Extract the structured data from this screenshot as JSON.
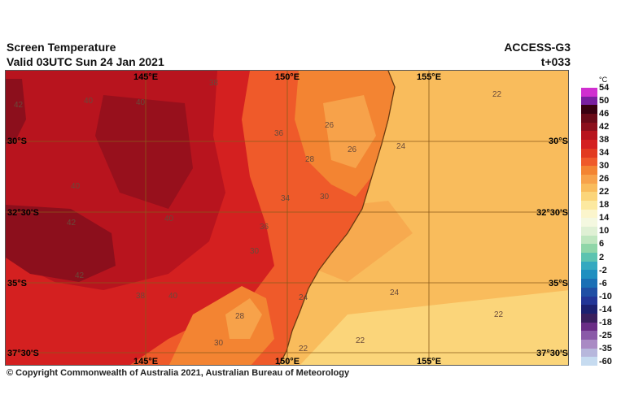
{
  "header": {
    "title": "Screen Temperature",
    "valid": "Valid 03UTC Sun 24 Jan 2021",
    "model": "ACCESS-G3",
    "lead": "t+033"
  },
  "map": {
    "lon_labels": [
      "145°E",
      "150°E",
      "155°E"
    ],
    "lat_labels": [
      "30°S",
      "32°30'S",
      "35°S",
      "37°30'S"
    ],
    "contour_labels": [
      "40",
      "40",
      "40",
      "42",
      "42",
      "40",
      "38",
      "36",
      "26",
      "26",
      "28",
      "34",
      "30",
      "30",
      "36",
      "24",
      "24",
      "22",
      "22",
      "22",
      "22",
      "24",
      "28",
      "30",
      "38",
      "40",
      "42"
    ]
  },
  "legend": {
    "unit": "°C",
    "labels": [
      "54",
      "50",
      "46",
      "42",
      "38",
      "34",
      "30",
      "26",
      "22",
      "18",
      "14",
      "10",
      "6",
      "2",
      "-2",
      "-6",
      "-10",
      "-14",
      "-18",
      "-25",
      "-35",
      "-60"
    ],
    "colors": [
      "#d02fd0",
      "#7a1fa0",
      "#3a0010",
      "#6a0a18",
      "#8c0f1c",
      "#b8141e",
      "#d42020",
      "#e23a20",
      "#ef5a2a",
      "#f38432",
      "#f7a24a",
      "#f9bc5c",
      "#fbd57a",
      "#fce9a0",
      "#fbf5cc",
      "#f4f8e0",
      "#dff0d4",
      "#bfe6bf",
      "#8fd6a8",
      "#5cc3b0",
      "#34a9c0",
      "#1f8fc0",
      "#1a6fb5",
      "#1f4fa5",
      "#223597",
      "#1c2070",
      "#3a1f5e",
      "#6a2d86",
      "#8a5aa8",
      "#a98ac4",
      "#b7b7dc",
      "#c6dbf0"
    ]
  },
  "copyright": "© Copyright Commonwealth of Australia 2021, Australian Bureau of Meteorology"
}
